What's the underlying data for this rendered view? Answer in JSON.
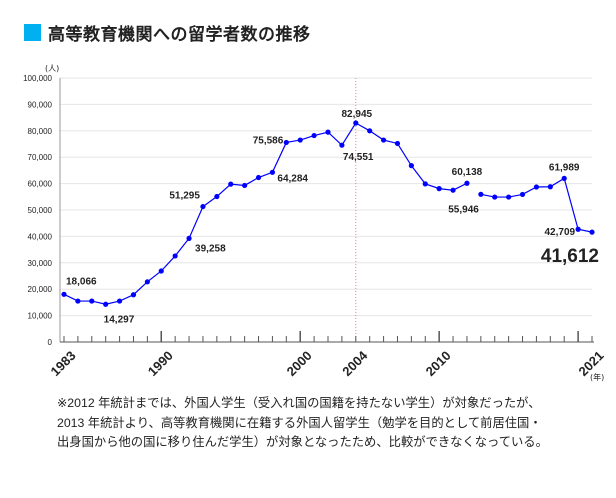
{
  "header": {
    "title": "高等教育機関への留学者数の推移",
    "accent_color": "#00b0f0"
  },
  "chart_data": {
    "type": "line",
    "title": "高等教育機関への留学者数の推移",
    "ylabel": "(人)",
    "xlabel": "(年)",
    "ylim": [
      0,
      100000
    ],
    "xlim": [
      1983,
      2021
    ],
    "y_ticks": [
      "0",
      "10,000",
      "20,000",
      "30,000",
      "40,000",
      "50,000",
      "60,000",
      "70,000",
      "80,000",
      "90,000",
      "100,000"
    ],
    "y_tick_values": [
      0,
      10000,
      20000,
      30000,
      40000,
      50000,
      60000,
      70000,
      80000,
      90000,
      100000
    ],
    "x_tick_labels": [
      "1983",
      "1990",
      "2000",
      "2004",
      "2010",
      "2021"
    ],
    "grid": true,
    "line_color": "#0000ff",
    "highlight_line": {
      "x": 2004,
      "color": "#f08080"
    },
    "series": [
      {
        "segments": [
          {
            "x": [
              1983,
              1984,
              1985,
              1986,
              1987,
              1988,
              1989,
              1990,
              1991,
              1992,
              1993,
              1994,
              1995,
              1996,
              1997,
              1998,
              1999,
              2000,
              2001,
              2002,
              2003,
              2004,
              2005,
              2006,
              2007,
              2008,
              2009,
              2010,
              2011,
              2012
            ],
            "y": [
              18066,
              15500,
              15500,
              14297,
              15500,
              17900,
              22800,
              26900,
              32600,
              39258,
              51295,
              55100,
              59800,
              59300,
              62300,
              64284,
              75586,
              76500,
              78200,
              79500,
              74551,
              82945,
              80000,
              76500,
              75200,
              66800,
              59900,
              58100,
              57500,
              60138
            ]
          },
          {
            "x": [
              2013,
              2014,
              2015,
              2016,
              2017,
              2018,
              2019,
              2020,
              2021
            ],
            "y": [
              55946,
              54900,
              54900,
              55900,
              58700,
              58800,
              61989,
              42709,
              41612
            ]
          }
        ]
      }
    ],
    "data_labels": [
      {
        "x": 1983,
        "text": "18,066"
      },
      {
        "x": 1986,
        "text": "14,297"
      },
      {
        "x": 1992,
        "text": "39,258"
      },
      {
        "x": 1993,
        "text": "51,295"
      },
      {
        "x": 1998,
        "text": "64,284"
      },
      {
        "x": 1999,
        "text": "75,586"
      },
      {
        "x": 2003,
        "text": "74,551"
      },
      {
        "x": 2004,
        "text": "82,945"
      },
      {
        "x": 2012,
        "text": "60,138"
      },
      {
        "x": 2013,
        "text": "55,946"
      },
      {
        "x": 2019,
        "text": "61,989"
      },
      {
        "x": 2020,
        "text": "42,709"
      },
      {
        "x": 2021,
        "text": "41,612"
      }
    ]
  },
  "note": {
    "lines": [
      "※2012 年統計までは、外国人学生（受入れ国の国籍を持たない学生）が対象だったが、",
      "2013 年統計より、高等教育機関に在籍する外国人留学生（勉学を目的として前居住国・",
      "出身国から他の国に移り住んだ学生）が対象となったため、比較ができなくなっている。"
    ]
  }
}
